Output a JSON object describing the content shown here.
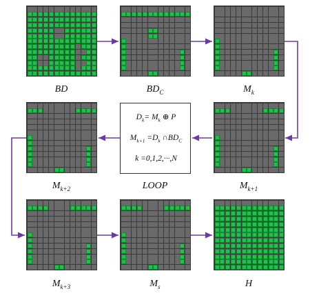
{
  "colors": {
    "on": "#1fc14a",
    "off": "#6a6a6a",
    "bg": "#3a3a3a",
    "arrow": "#6a3aa6"
  },
  "labels": {
    "BD": "BD",
    "BDC_main": "BD",
    "BDC_sub": "C",
    "Mk_main": "M",
    "Mk_sub": "k",
    "Mk2_main": "M",
    "Mk2_sub": "k+2",
    "loop": "LOOP",
    "Mk1_main": "M",
    "Mk1_sub": "k+1",
    "Mk3_main": "M",
    "Mk3_sub": "k+3",
    "Ms_main": "M",
    "Ms_sub": "s",
    "H": "H"
  },
  "equations": {
    "eq1_a": "D",
    "eq1_a_sub": "k",
    "eq1_b": "= M",
    "eq1_b_sub": "k",
    "eq1_c": " ⊕ P",
    "eq2_a": "M",
    "eq2_a_sub": "k+1",
    "eq2_b": " =D",
    "eq2_b_sub": "k",
    "eq2_c": " ∩BD",
    "eq2_c_sub": "C",
    "eq3": "k =0,1,2,···,N"
  },
  "grids": {
    "BD": [
      "0000000000000",
      "1111111111111",
      "1111111111111",
      "1111111111111",
      "1111100111111",
      "1111100111111",
      "1111111111111",
      "1111111110111",
      "1111111110011",
      "1100111110111",
      "1100111110011",
      "1111111110111",
      "1111111111111"
    ],
    "BDC": [
      "0000000000000",
      "1111111111111",
      "0000000000000",
      "0000000000000",
      "0000011000000",
      "0000011000000",
      "1000000000000",
      "1000000000000",
      "1000000000010",
      "1000000000010",
      "1000000000010",
      "1000000000010",
      "0000011000000"
    ],
    "Mk": [
      "0000000000000",
      "0000000000000",
      "0000000000000",
      "0000000000000",
      "0000000000000",
      "0000000000000",
      "1000000000000",
      "1000000000000",
      "1000000000010",
      "1000000000010",
      "1000000000010",
      "1000000000010",
      "0000011000000"
    ],
    "Mk1": [
      "0000000000000",
      "1110000001111",
      "0000000000000",
      "0000000000000",
      "0000000000000",
      "0000000000000",
      "1000000000000",
      "1000000000000",
      "1000000000010",
      "1000000000010",
      "1000000000010",
      "1000000000010",
      "0000011000000"
    ],
    "Mk2": [
      "0000000000000",
      "1110000001111",
      "0000000000000",
      "0000000000000",
      "0000000000000",
      "0000000000000",
      "1000000000000",
      "1000000000000",
      "1000000000010",
      "1000000000010",
      "1000000000010",
      "1000000000010",
      "0000011000000"
    ],
    "Mk3": [
      "0000000000000",
      "1111000011111",
      "0000000000000",
      "0000000000000",
      "0000000000000",
      "0000000000000",
      "1000000000000",
      "1000000000000",
      "1000000000010",
      "1000000000010",
      "1000000000010",
      "1000000000010",
      "0000011000000"
    ],
    "Ms": [
      "0000000000000",
      "1111000011111",
      "0000000000000",
      "0000000000000",
      "0000000000000",
      "0000000000000",
      "1000000000000",
      "1000000000000",
      "1000000000010",
      "1000000000010",
      "1000000000010",
      "1000000000010",
      "0000011000000"
    ],
    "H": [
      "0000000000000",
      "1111111111111",
      "1111111111111",
      "1111111111111",
      "1111111111111",
      "1111111111111",
      "1111111111111",
      "1111111111111",
      "1111111111111",
      "1111111111111",
      "1111111111111",
      "1111111111111",
      "1111111111111"
    ]
  }
}
